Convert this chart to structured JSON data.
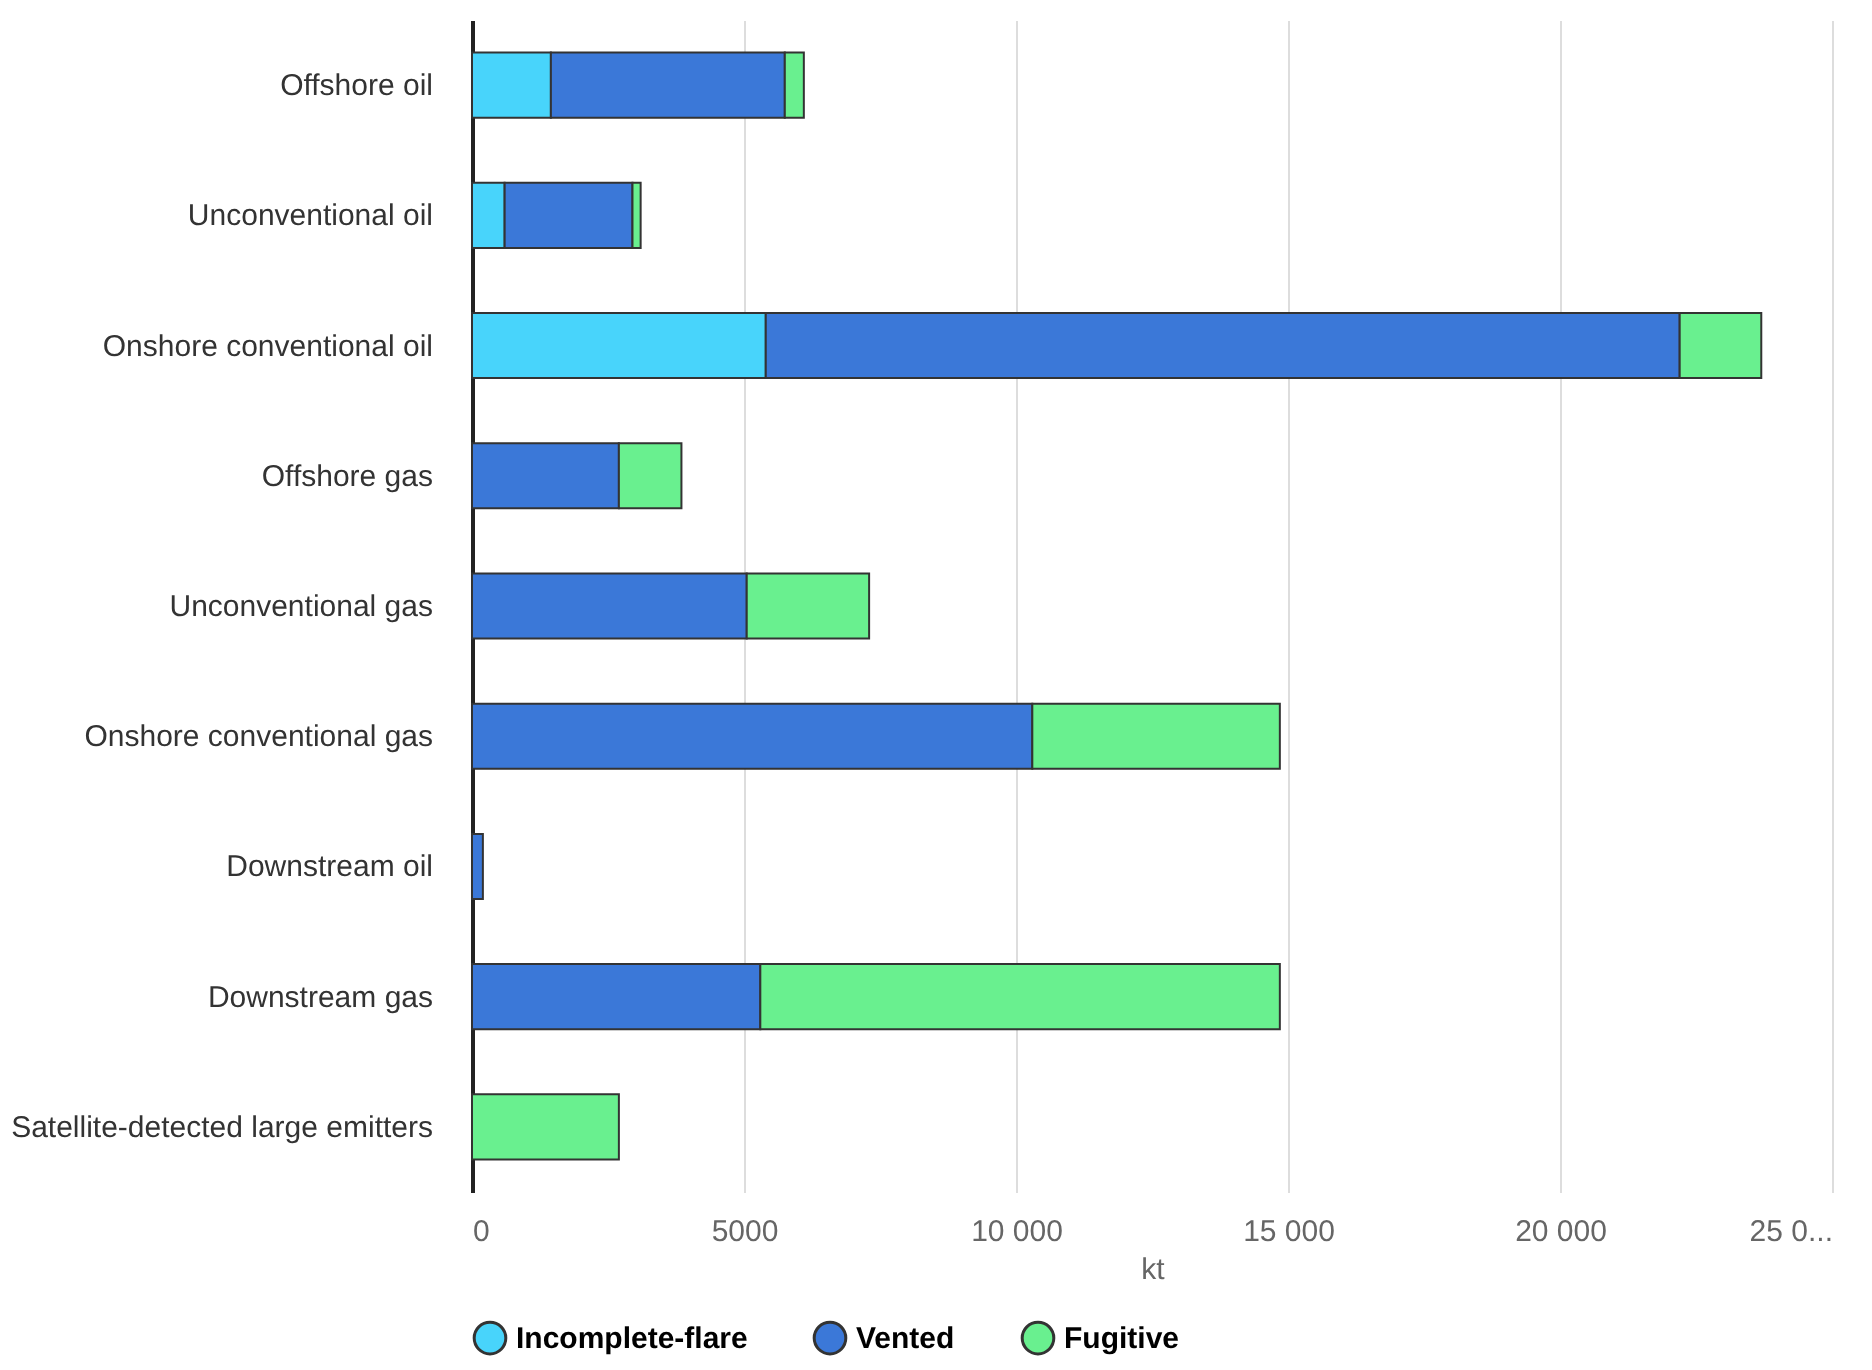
{
  "chart_data": {
    "type": "bar",
    "orientation": "horizontal",
    "stacked": true,
    "categories": [
      "Offshore oil",
      "Unconventional oil",
      "Onshore conventional oil",
      "Offshore gas",
      "Unconventional gas",
      "Onshore conventional gas",
      "Downstream oil",
      "Downstream gas",
      "Satellite-detected large emitters"
    ],
    "series": [
      {
        "name": "Incomplete-flare",
        "color": "#48d4fb",
        "values": [
          1450,
          600,
          5400,
          0,
          0,
          0,
          0,
          0,
          0
        ]
      },
      {
        "name": "Vented",
        "color": "#3b78d8",
        "values": [
          4300,
          2350,
          16800,
          2700,
          5050,
          10300,
          200,
          5300,
          0
        ]
      },
      {
        "name": "Fugitive",
        "color": "#69f08f",
        "values": [
          350,
          150,
          1500,
          1150,
          2250,
          4550,
          0,
          9550,
          2700
        ]
      }
    ],
    "xlabel": "kt",
    "xlim": [
      0,
      25000
    ],
    "xticks": [
      0,
      {
        "value": 5000,
        "label": "5000"
      },
      {
        "value": 10000,
        "label": "10 000"
      },
      {
        "value": 15000,
        "label": "15 000"
      },
      {
        "value": 20000,
        "label": "20 000"
      },
      {
        "value": 25000,
        "label": "25 0..."
      }
    ],
    "grid": "x",
    "legend": "bottom"
  }
}
